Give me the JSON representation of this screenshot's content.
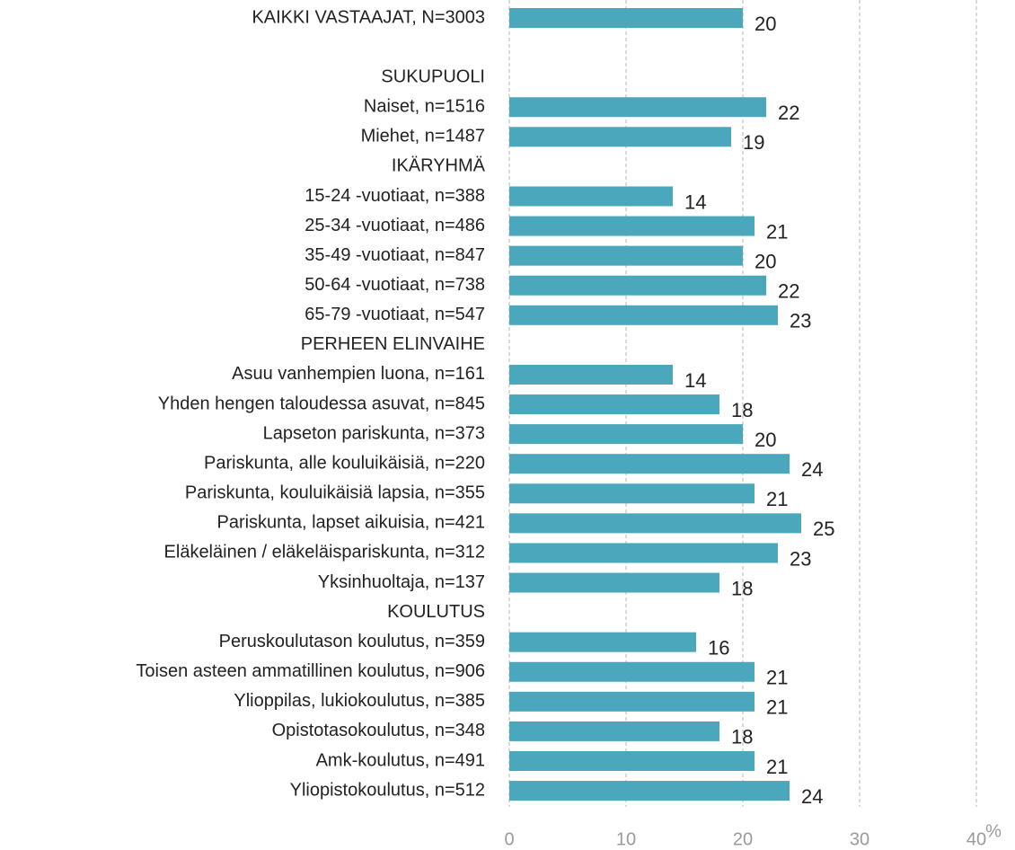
{
  "chart_data": {
    "type": "barh",
    "categories": [
      "KAIKKI VASTAAJAT, N=3003",
      null,
      "SUKUPUOLI",
      "Naiset, n=1516",
      "Miehet, n=1487",
      "IKÄRYHMÄ",
      "15-24 -vuotiaat, n=388",
      "25-34 -vuotiaat, n=486",
      "35-49 -vuotiaat, n=847",
      "50-64 -vuotiaat, n=738",
      "65-79 -vuotiaat, n=547",
      "PERHEEN ELINVAIHE",
      "Asuu vanhempien luona, n=161",
      "Yhden hengen taloudessa asuvat, n=845",
      "Lapseton pariskunta, n=373",
      "Pariskunta, alle kouluikäisiä, n=220",
      "Pariskunta, kouluikäisiä lapsia, n=355",
      "Pariskunta, lapset aikuisia, n=421",
      "Eläkeläinen / eläkeläispariskunta, n=312",
      "Yksinhuoltaja, n=137",
      "KOULUTUS",
      "Peruskoulutason koulutus, n=359",
      "Toisen asteen ammatillinen koulutus, n=906",
      "Ylioppilas, lukiokoulutus, n=385",
      "Opistotasokoulutus, n=348",
      "Amk-koulutus, n=491",
      "Yliopistokoulutus, n=512"
    ],
    "values": [
      20,
      null,
      null,
      22,
      19,
      null,
      14,
      21,
      20,
      22,
      23,
      null,
      14,
      18,
      20,
      24,
      21,
      25,
      23,
      18,
      null,
      16,
      21,
      21,
      18,
      21,
      24
    ],
    "color": "#4ba7bc",
    "x_label": "%",
    "xlim": [
      0,
      40
    ],
    "xticks": [
      0,
      10,
      20,
      30,
      40
    ],
    "grid": true
  }
}
